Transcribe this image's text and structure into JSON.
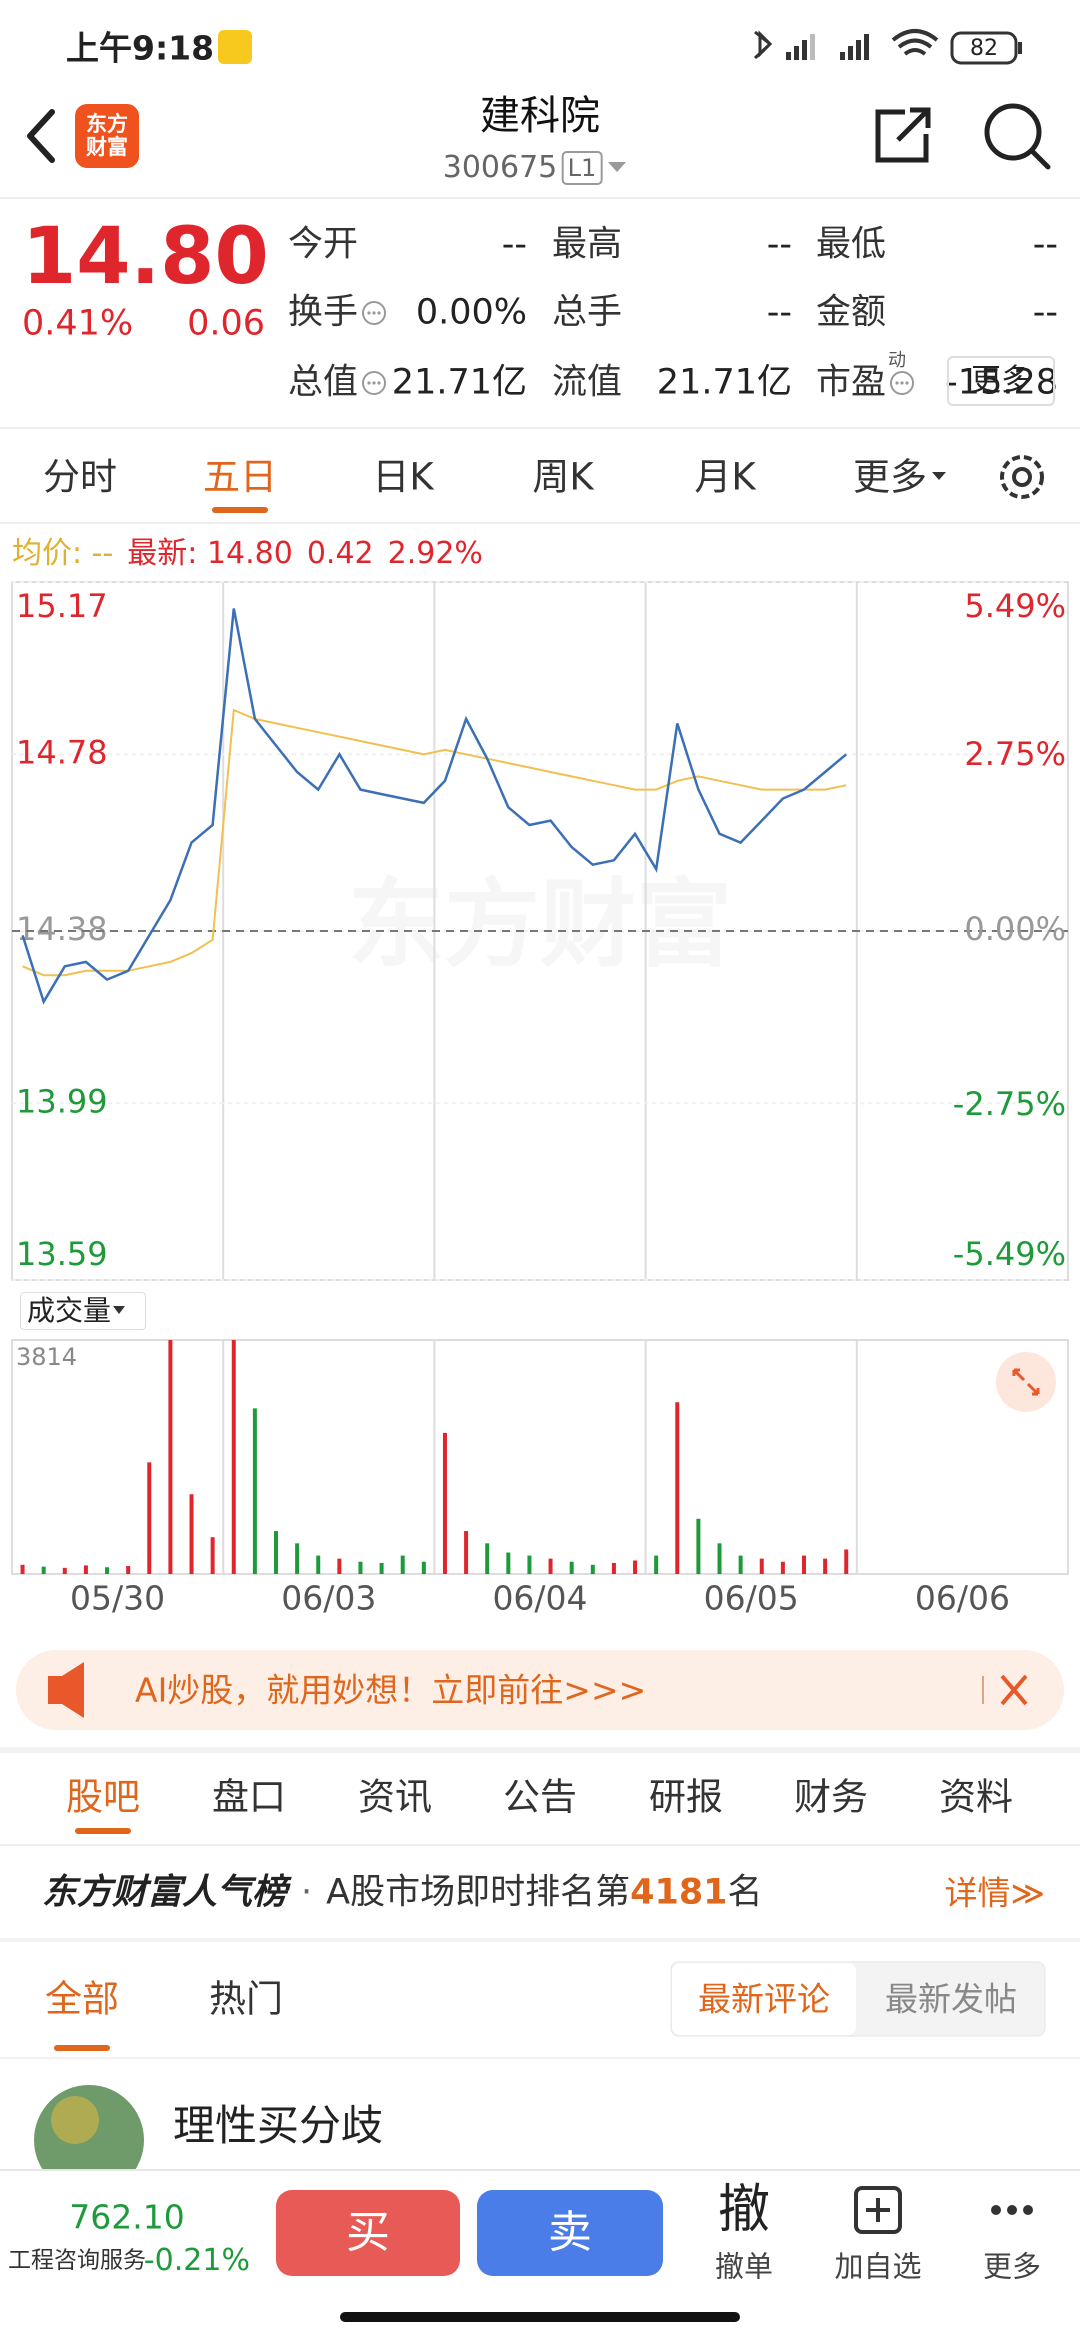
{
  "status_bar": {
    "time": "上午9:18",
    "battery": "82"
  },
  "header": {
    "logo": "东方财富",
    "title": "建科院",
    "code": "300675",
    "level": "L1"
  },
  "quote": {
    "price": "14.80",
    "change_pct": "0.41%",
    "change": "0.06",
    "fields": [
      [
        {
          "label": "今开",
          "value": "--"
        },
        {
          "label": "最高",
          "value": "--"
        },
        {
          "label": "最低",
          "value": "--"
        }
      ],
      [
        {
          "label": "换手",
          "info": true,
          "value": "0.00%"
        },
        {
          "label": "总手",
          "value": "--"
        },
        {
          "label": "金额",
          "value": "--"
        }
      ],
      [
        {
          "label": "总值",
          "info": true,
          "value": "21.71亿"
        },
        {
          "label": "流值",
          "value": "21.71亿"
        },
        {
          "label": "市盈",
          "sup": "动",
          "info": true,
          "value": "-15.28"
        }
      ]
    ],
    "more": "更多"
  },
  "chart": {
    "type": "line",
    "tabs": [
      "分时",
      "五日",
      "日K",
      "周K",
      "月K",
      "更多"
    ],
    "active_tab": 1,
    "avg": "均价: --",
    "latest": "最新: 14.80",
    "change": "0.42",
    "change_pct": "2.92%",
    "watermark": "东方财富",
    "categories": [
      "05/30",
      "06/03",
      "06/04",
      "06/05",
      "06/06"
    ],
    "ylim": [
      13.59,
      15.17
    ],
    "yticks": [
      15.17,
      14.78,
      14.38,
      13.99,
      13.59
    ],
    "y2lim": [
      -5.49,
      5.49
    ],
    "y2ticks": [
      {
        "value": 5.49,
        "label": "5.49%"
      },
      {
        "value": 2.75,
        "label": "2.75%"
      },
      {
        "value": 0,
        "label": "0.00%"
      },
      {
        "value": -2.75,
        "label": "-2.75%"
      },
      {
        "value": -5.49,
        "label": "-5.49%"
      }
    ],
    "series": [
      {
        "color": "#3b6fb6",
        "values": [
          14.37,
          14.22,
          14.3,
          14.31,
          14.27,
          14.29,
          14.37,
          14.45,
          14.58,
          14.62,
          15.11,
          14.86,
          14.8,
          14.74,
          14.7,
          14.78,
          14.7,
          14.69,
          14.68,
          14.67,
          14.72,
          14.86,
          14.77,
          14.66,
          14.62,
          14.63,
          14.57,
          14.53,
          14.54,
          14.6,
          14.52,
          14.85,
          14.7,
          14.6,
          14.58,
          14.63,
          14.68,
          14.7,
          14.74,
          14.78
        ]
      },
      {
        "color": "#f0c050",
        "values": [
          14.3,
          14.28,
          14.28,
          14.29,
          14.29,
          14.29,
          14.3,
          14.31,
          14.33,
          14.36,
          14.88,
          14.86,
          14.85,
          14.84,
          14.83,
          14.82,
          14.81,
          14.8,
          14.79,
          14.78,
          14.79,
          14.78,
          14.77,
          14.76,
          14.75,
          14.74,
          14.73,
          14.72,
          14.71,
          14.7,
          14.7,
          14.72,
          14.73,
          14.72,
          14.71,
          14.7,
          14.7,
          14.7,
          14.7,
          14.71
        ]
      }
    ],
    "volume": {
      "title": "成交量",
      "ylim": [
        0,
        3814
      ],
      "yticks": [
        3814
      ],
      "up_color": "#e0262d",
      "down_color": "#1f9a3a",
      "values": [
        150,
        120,
        100,
        140,
        110,
        130,
        1820,
        3814,
        1300,
        600,
        3814,
        2700,
        700,
        500,
        300,
        250,
        200,
        180,
        300,
        200,
        2300,
        700,
        500,
        350,
        300,
        250,
        200,
        150,
        180,
        220,
        300,
        2800,
        900,
        500,
        300,
        250,
        200,
        300,
        250,
        400
      ]
    }
  },
  "banner": {
    "text": "AI炒股，就用妙想！立即前往>>>"
  },
  "section_tabs": {
    "items": [
      "股吧",
      "盘口",
      "资讯",
      "公告",
      "研报",
      "财务",
      "资料"
    ],
    "active": 0
  },
  "ranking": {
    "title": "东方财富人气榜",
    "dot": "·",
    "text": "A股市场即时排名第",
    "rank": "4181",
    "suffix": "名",
    "detail": "详情≫"
  },
  "feed": {
    "tabs": [
      "全部",
      "热门"
    ],
    "active": 0,
    "sort": [
      "最新评论",
      "最新发帖"
    ],
    "sort_active": 0,
    "post_title": "理性买分歧"
  },
  "bottom_bar": {
    "index_value": "762.10",
    "sector": "工程咨询服务",
    "sector_change": "-0.21%",
    "buy": "买",
    "sell": "卖",
    "cancel_icon": "撤",
    "cancel": "撤单",
    "watch": "加自选",
    "more": "更多"
  }
}
